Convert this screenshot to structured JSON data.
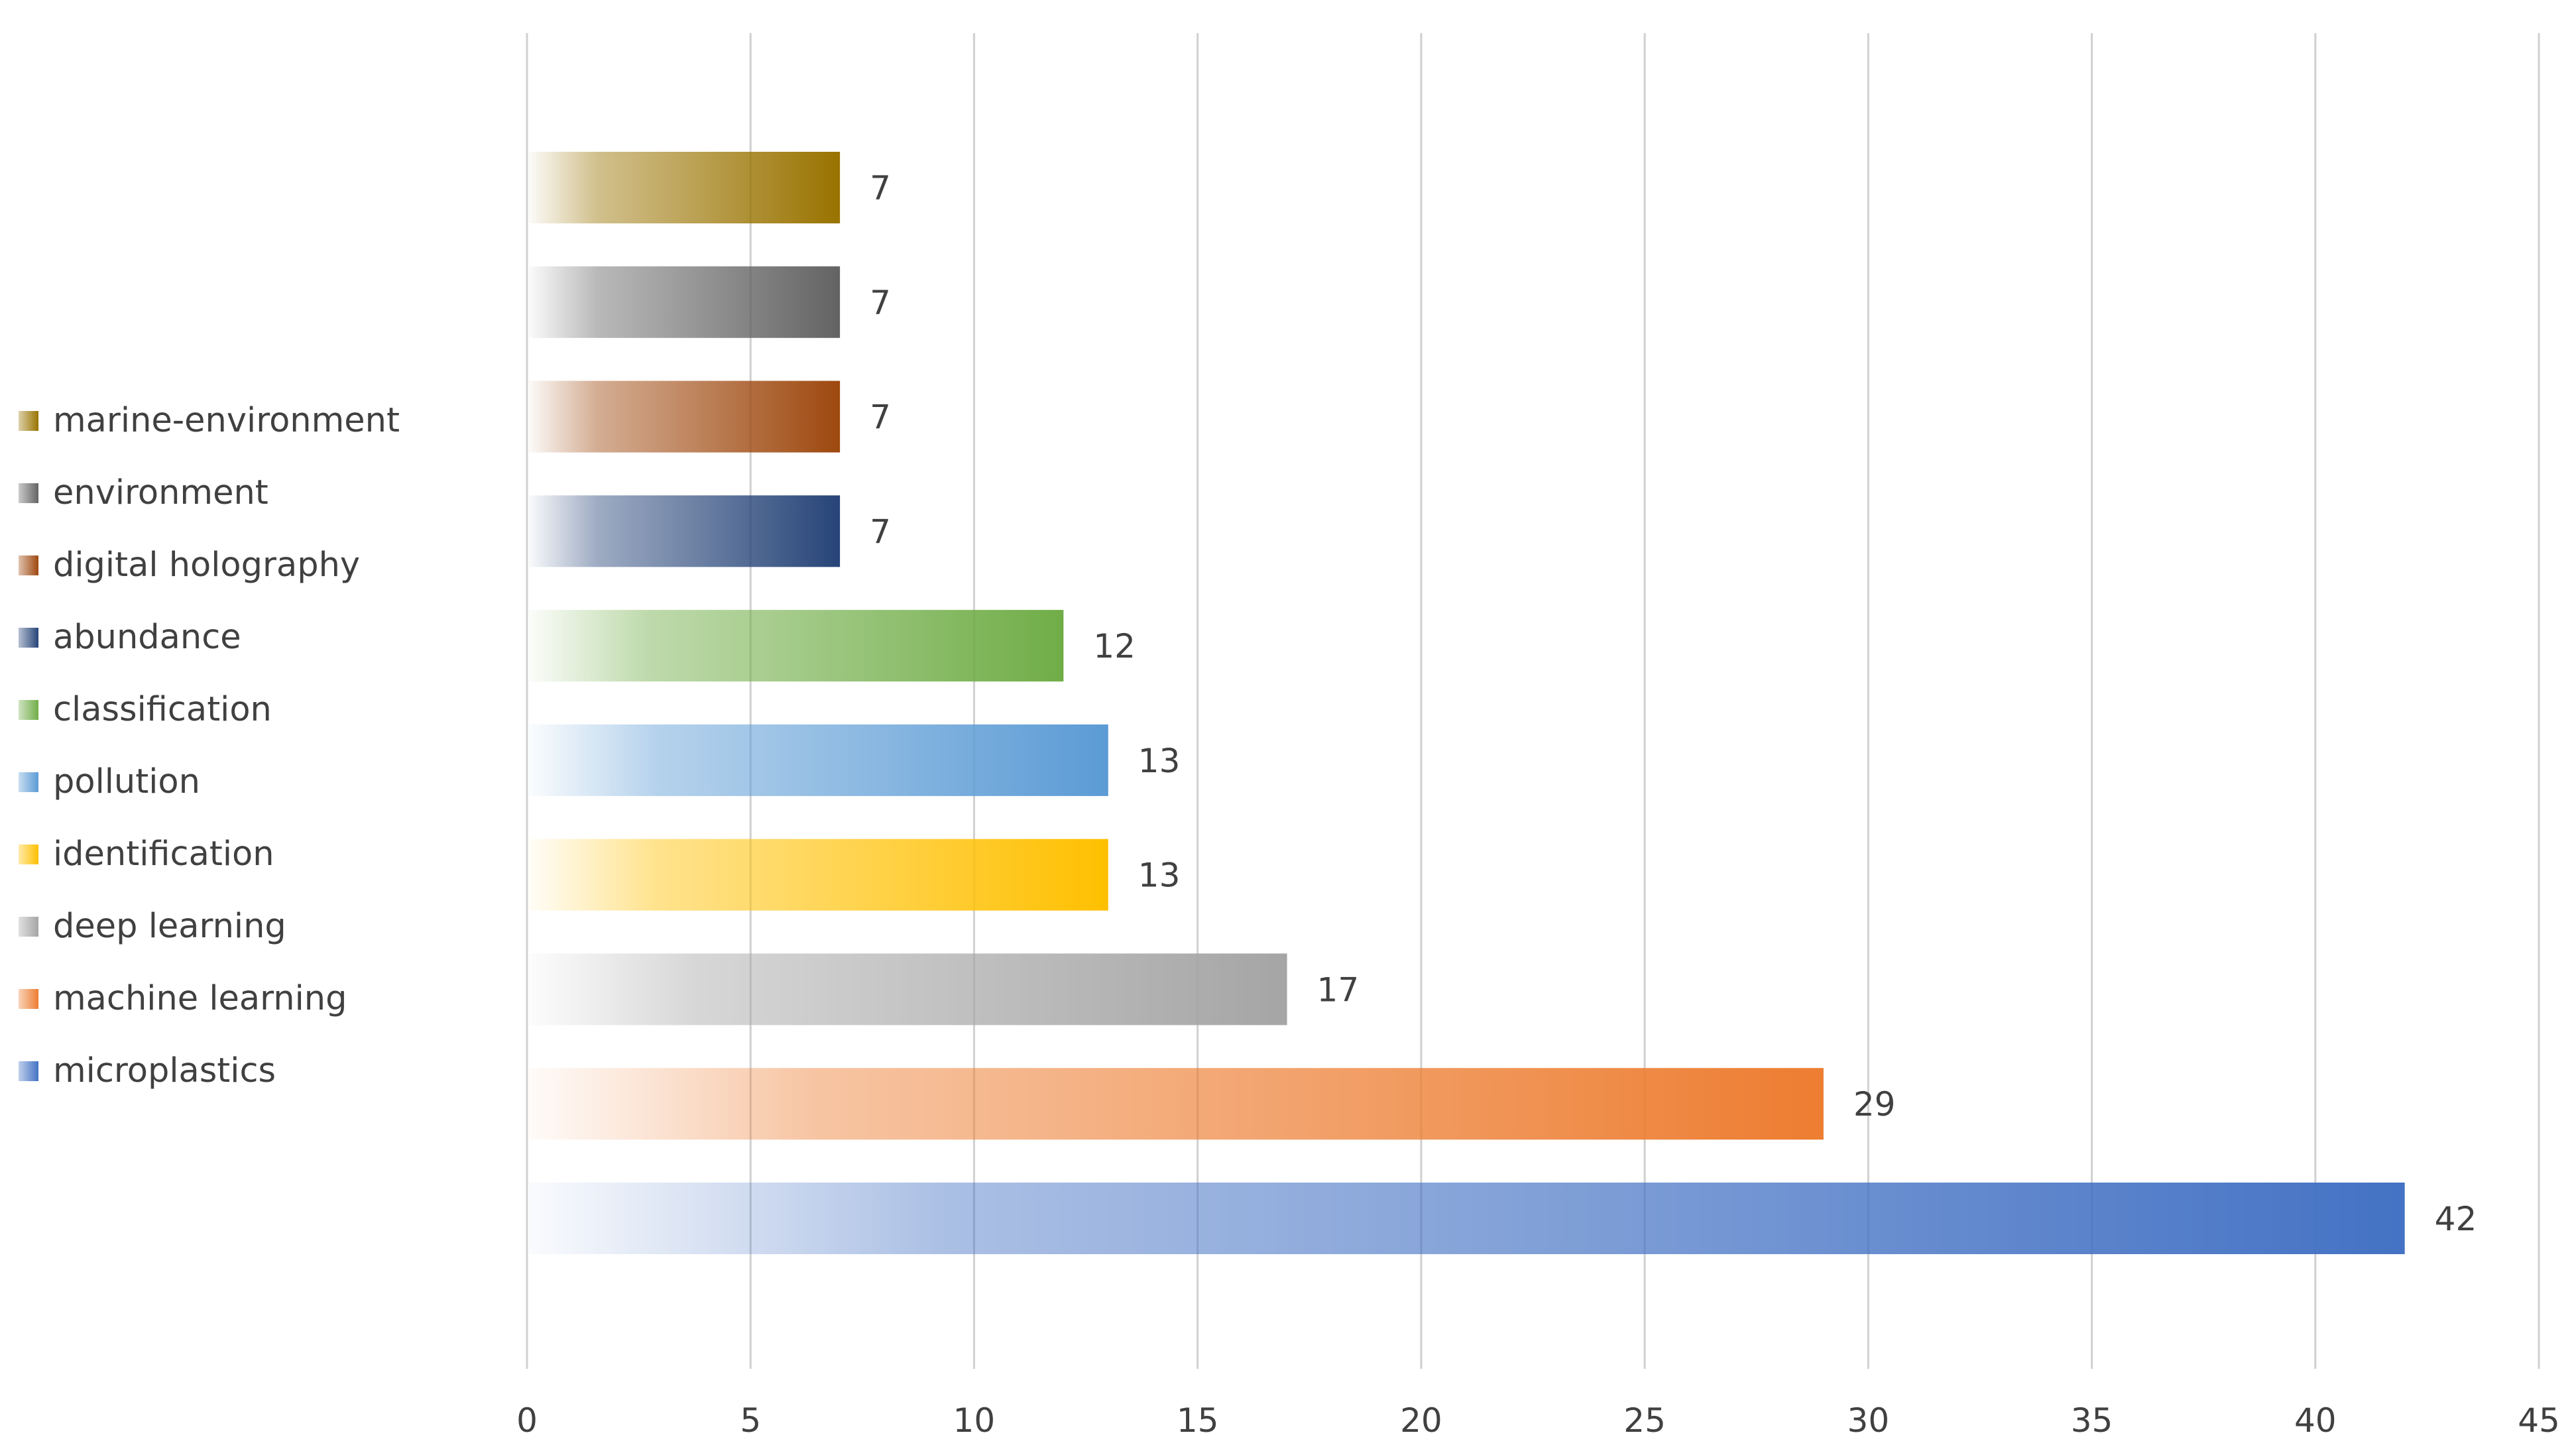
{
  "colors": {
    "gridline": "#d0d0d0",
    "text": "#404040"
  },
  "chart_data": {
    "type": "bar",
    "orientation": "horizontal",
    "title": "",
    "xlabel": "",
    "ylabel": "",
    "xlim": [
      0,
      45
    ],
    "x_ticks": [
      0,
      5,
      10,
      15,
      20,
      25,
      30,
      35,
      40,
      45
    ],
    "grid": "vertical gridlines",
    "legend_position": "left",
    "data_labels": true,
    "series": [
      {
        "name": "microplastics",
        "value": 42,
        "color": "#4472C4"
      },
      {
        "name": "machine learning",
        "value": 29,
        "color": "#ED7D31"
      },
      {
        "name": "deep learning",
        "value": 17,
        "color": "#A5A5A5"
      },
      {
        "name": "identification",
        "value": 13,
        "color": "#FFC000"
      },
      {
        "name": "pollution",
        "value": 13,
        "color": "#5B9BD5"
      },
      {
        "name": "classification",
        "value": 12,
        "color": "#70AD47"
      },
      {
        "name": "abundance",
        "value": 7,
        "color": "#264478"
      },
      {
        "name": "digital holography",
        "value": 7,
        "color": "#9E480E"
      },
      {
        "name": "environment",
        "value": 7,
        "color": "#636363"
      },
      {
        "name": "marine-environment",
        "value": 7,
        "color": "#997300"
      }
    ]
  }
}
